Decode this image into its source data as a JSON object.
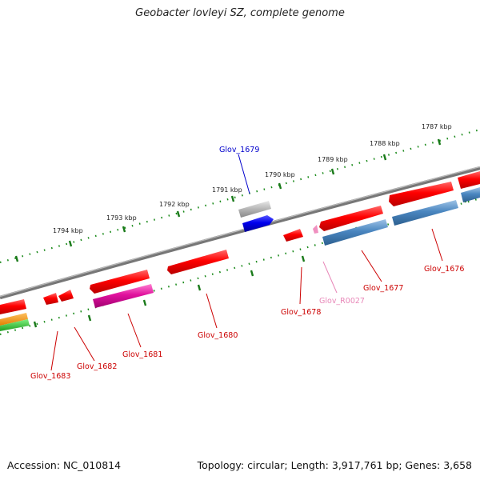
{
  "title": "Geobacter lovleyi SZ, complete genome",
  "footer": {
    "accession": "Accession: NC_010814",
    "stats": "Topology: circular; Length: 3,917,761 bp; Genes: 3,658"
  },
  "ticks": [
    {
      "label": "1787 kbp"
    },
    {
      "label": "1788 kbp"
    },
    {
      "label": "1789 kbp"
    },
    {
      "label": "1790 kbp"
    },
    {
      "label": "1791 kbp"
    },
    {
      "label": "1792 kbp"
    },
    {
      "label": "1793 kbp"
    },
    {
      "label": "1794 kbp"
    }
  ],
  "genes": [
    {
      "label": "Glov_1679",
      "color": "#0000cc"
    },
    {
      "label": "Glov_1676",
      "color": "#cc0000"
    },
    {
      "label": "Glov_1677",
      "color": "#cc0000"
    },
    {
      "label": "Glov_R0027",
      "color": "#e887b8"
    },
    {
      "label": "Glov_1678",
      "color": "#cc0000"
    },
    {
      "label": "Glov_1680",
      "color": "#cc0000"
    },
    {
      "label": "Glov_1681",
      "color": "#cc0000"
    },
    {
      "label": "Glov_1682",
      "color": "#cc0000"
    },
    {
      "label": "Glov_1683",
      "color": "#cc0000"
    }
  ]
}
